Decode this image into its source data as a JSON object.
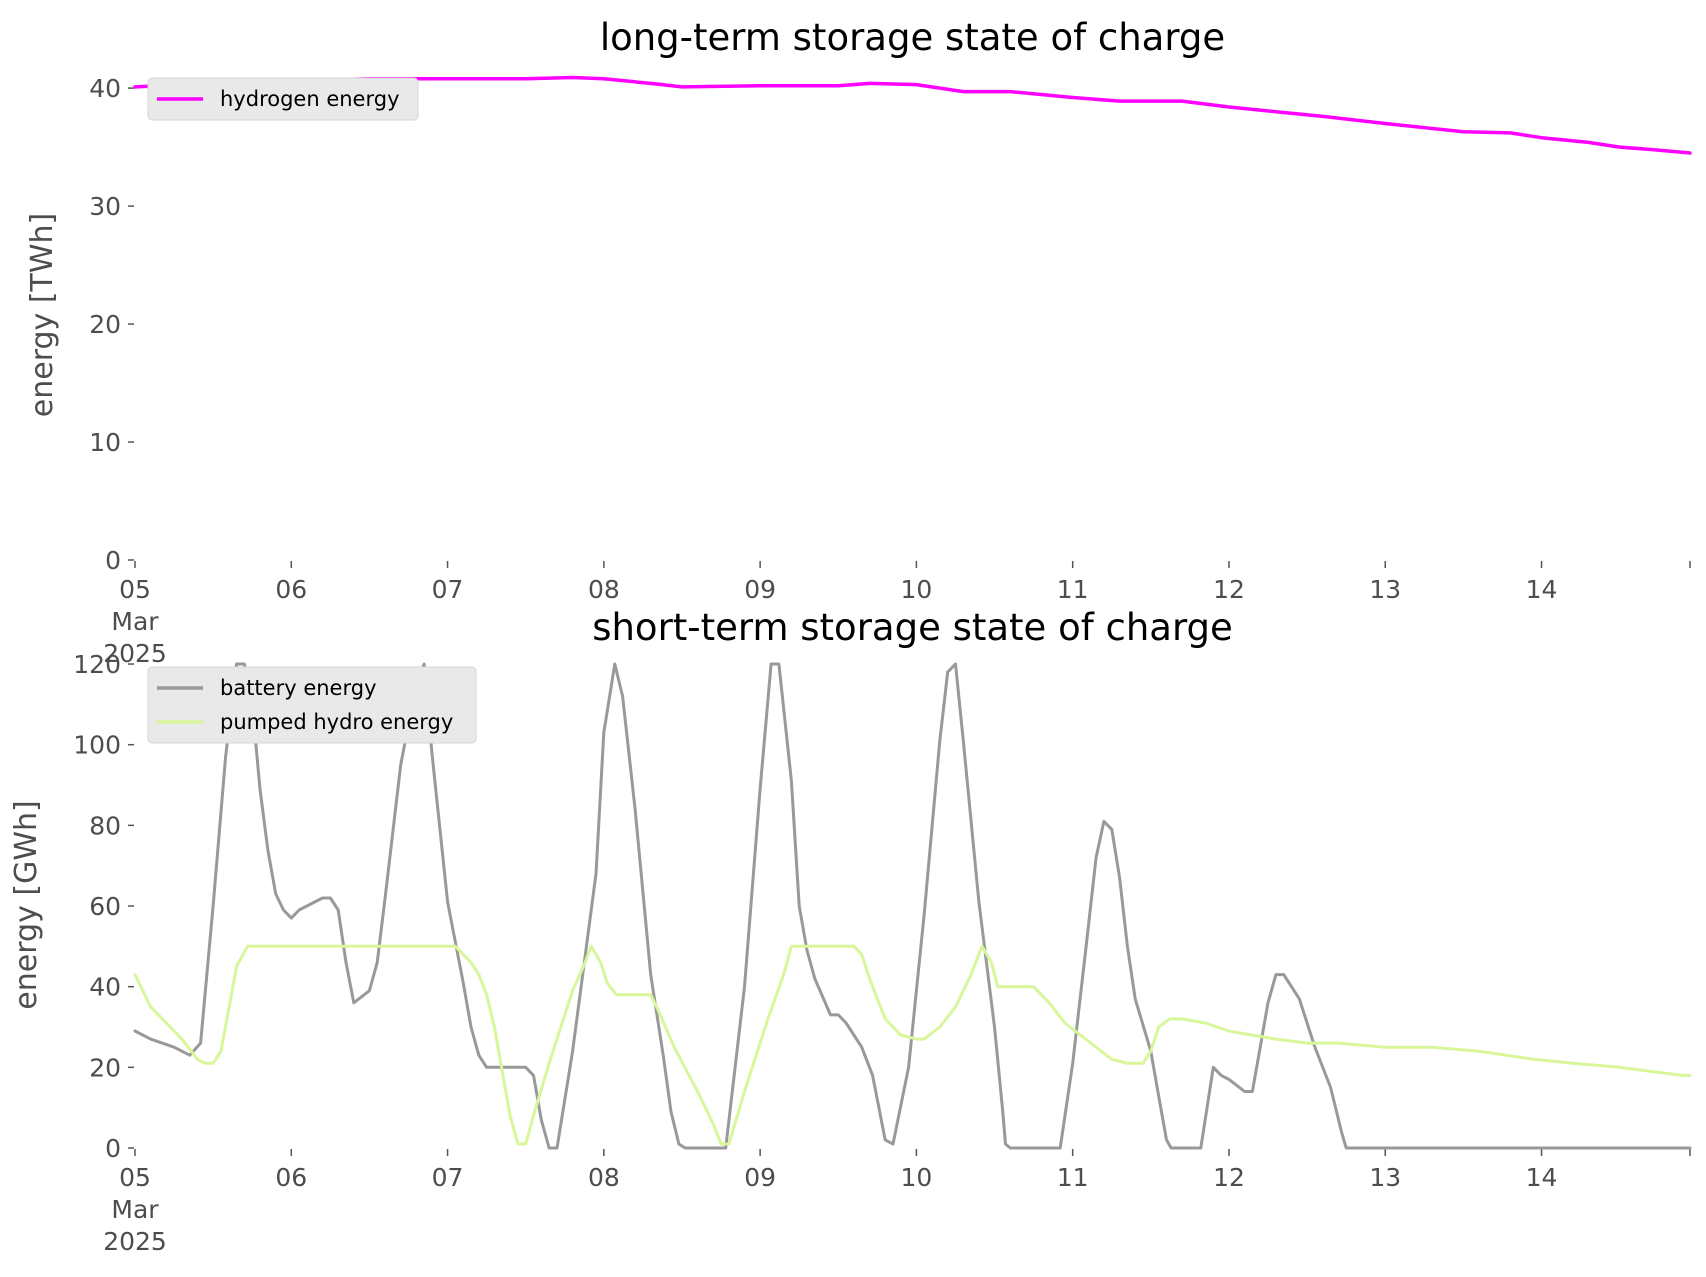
{
  "chart_data": [
    {
      "type": "line",
      "title": "long-term storage state of charge",
      "xlabel": "",
      "ylabel": "energy [TWh]",
      "ylim": [
        0,
        43.4
      ],
      "yticks": [
        0,
        10,
        20,
        30,
        40
      ],
      "xlim": [
        0,
        9.95
      ],
      "x_unit": "days since 05 Mar 2025",
      "xticks": [
        {
          "value": 0,
          "lines": [
            "05",
            "Mar",
            "2025"
          ]
        },
        {
          "value": 1,
          "lines": [
            "06"
          ]
        },
        {
          "value": 2,
          "lines": [
            "07"
          ]
        },
        {
          "value": 3,
          "lines": [
            "08"
          ]
        },
        {
          "value": 4,
          "lines": [
            "09"
          ]
        },
        {
          "value": 5,
          "lines": [
            "10"
          ]
        },
        {
          "value": 6,
          "lines": [
            "11"
          ]
        },
        {
          "value": 7,
          "lines": [
            "12"
          ]
        },
        {
          "value": 8,
          "lines": [
            "13"
          ]
        },
        {
          "value": 9,
          "lines": [
            "14"
          ]
        }
      ],
      "grid": false,
      "legend_position": "top-left",
      "series": [
        {
          "name": "hydrogen energy",
          "color": "#ff00ff",
          "points": [
            [
              0,
              40.1
            ],
            [
              0.5,
              40.4
            ],
            [
              1,
              40.6
            ],
            [
              1.5,
              40.8
            ],
            [
              2,
              40.8
            ],
            [
              2.5,
              40.8
            ],
            [
              2.8,
              40.9
            ],
            [
              3,
              40.8
            ],
            [
              3.3,
              40.4
            ],
            [
              3.5,
              40.1
            ],
            [
              4,
              40.2
            ],
            [
              4.5,
              40.2
            ],
            [
              4.7,
              40.4
            ],
            [
              5,
              40.3
            ],
            [
              5.3,
              39.7
            ],
            [
              5.6,
              39.7
            ],
            [
              6,
              39.2
            ],
            [
              6.3,
              38.9
            ],
            [
              6.7,
              38.9
            ],
            [
              7,
              38.4
            ],
            [
              7.3,
              38.0
            ],
            [
              7.6,
              37.6
            ],
            [
              8,
              37.0
            ],
            [
              8.5,
              36.3
            ],
            [
              8.8,
              36.2
            ],
            [
              9,
              35.8
            ],
            [
              9.3,
              35.4
            ],
            [
              9.5,
              35.0
            ],
            [
              9.7,
              34.8
            ],
            [
              9.95,
              34.5
            ]
          ]
        }
      ]
    },
    {
      "type": "line",
      "title": "short-term storage state of charge",
      "xlabel": "",
      "ylabel": "energy [GWh]",
      "ylim": [
        0,
        121
      ],
      "yticks": [
        0,
        20,
        40,
        60,
        80,
        100,
        120
      ],
      "xlim": [
        0,
        9.95
      ],
      "x_unit": "days since 05 Mar 2025",
      "xticks": [
        {
          "value": 0,
          "lines": [
            "05",
            "Mar",
            "2025"
          ]
        },
        {
          "value": 1,
          "lines": [
            "06"
          ]
        },
        {
          "value": 2,
          "lines": [
            "07"
          ]
        },
        {
          "value": 3,
          "lines": [
            "08"
          ]
        },
        {
          "value": 4,
          "lines": [
            "09"
          ]
        },
        {
          "value": 5,
          "lines": [
            "10"
          ]
        },
        {
          "value": 6,
          "lines": [
            "11"
          ]
        },
        {
          "value": 7,
          "lines": [
            "12"
          ]
        },
        {
          "value": 8,
          "lines": [
            "13"
          ]
        },
        {
          "value": 9,
          "lines": [
            "14"
          ]
        }
      ],
      "grid": false,
      "legend_position": "top-left",
      "series": [
        {
          "name": "battery energy",
          "color": "#999999",
          "points": [
            [
              0,
              29
            ],
            [
              0.1,
              27
            ],
            [
              0.25,
              25
            ],
            [
              0.35,
              23
            ],
            [
              0.42,
              26
            ],
            [
              0.5,
              60
            ],
            [
              0.58,
              97
            ],
            [
              0.65,
              120
            ],
            [
              0.7,
              120
            ],
            [
              0.75,
              110
            ],
            [
              0.8,
              89
            ],
            [
              0.85,
              74
            ],
            [
              0.9,
              63
            ],
            [
              0.95,
              59
            ],
            [
              1,
              57
            ],
            [
              1.05,
              59
            ],
            [
              1.1,
              60
            ],
            [
              1.15,
              61
            ],
            [
              1.2,
              62
            ],
            [
              1.25,
              62
            ],
            [
              1.3,
              59
            ],
            [
              1.35,
              46
            ],
            [
              1.4,
              36
            ],
            [
              1.5,
              39
            ],
            [
              1.55,
              46
            ],
            [
              1.6,
              62
            ],
            [
              1.7,
              95
            ],
            [
              1.8,
              115
            ],
            [
              1.85,
              120
            ],
            [
              1.9,
              98
            ],
            [
              2,
              61
            ],
            [
              2.1,
              41
            ],
            [
              2.15,
              30
            ],
            [
              2.2,
              23
            ],
            [
              2.25,
              20
            ],
            [
              2.5,
              20
            ],
            [
              2.55,
              18
            ],
            [
              2.6,
              7
            ],
            [
              2.65,
              0
            ],
            [
              2.7,
              0
            ],
            [
              2.8,
              24
            ],
            [
              2.95,
              68
            ],
            [
              3.0,
              103
            ],
            [
              3.07,
              120
            ],
            [
              3.12,
              112
            ],
            [
              3.2,
              84
            ],
            [
              3.3,
              43
            ],
            [
              3.38,
              23
            ],
            [
              3.43,
              9
            ],
            [
              3.48,
              1
            ],
            [
              3.52,
              0
            ],
            [
              3.78,
              0
            ],
            [
              3.9,
              40
            ],
            [
              4.0,
              89
            ],
            [
              4.07,
              120
            ],
            [
              4.12,
              120
            ],
            [
              4.2,
              91
            ],
            [
              4.25,
              60
            ],
            [
              4.3,
              49
            ],
            [
              4.35,
              42
            ],
            [
              4.45,
              33
            ],
            [
              4.5,
              33
            ],
            [
              4.55,
              31
            ],
            [
              4.6,
              28
            ],
            [
              4.65,
              25
            ],
            [
              4.72,
              18
            ],
            [
              4.8,
              2
            ],
            [
              4.85,
              1
            ],
            [
              4.95,
              20
            ],
            [
              5.05,
              58
            ],
            [
              5.15,
              101
            ],
            [
              5.2,
              118
            ],
            [
              5.25,
              120
            ],
            [
              5.3,
              101
            ],
            [
              5.4,
              61
            ],
            [
              5.5,
              30
            ],
            [
              5.55,
              10
            ],
            [
              5.57,
              1
            ],
            [
              5.6,
              0
            ],
            [
              5.92,
              0
            ],
            [
              6.0,
              21
            ],
            [
              6.08,
              48
            ],
            [
              6.15,
              72
            ],
            [
              6.2,
              81
            ],
            [
              6.25,
              79
            ],
            [
              6.3,
              67
            ],
            [
              6.35,
              50
            ],
            [
              6.4,
              37
            ],
            [
              6.5,
              24
            ],
            [
              6.55,
              13
            ],
            [
              6.6,
              2
            ],
            [
              6.63,
              0
            ],
            [
              6.82,
              0
            ],
            [
              6.9,
              20
            ],
            [
              6.95,
              18
            ],
            [
              7.0,
              17
            ],
            [
              7.1,
              14
            ],
            [
              7.15,
              14
            ],
            [
              7.2,
              25
            ],
            [
              7.25,
              36
            ],
            [
              7.3,
              43
            ],
            [
              7.35,
              43
            ],
            [
              7.4,
              40
            ],
            [
              7.45,
              37
            ],
            [
              7.55,
              25
            ],
            [
              7.65,
              15
            ],
            [
              7.72,
              4
            ],
            [
              7.75,
              0
            ],
            [
              9.95,
              0
            ]
          ]
        },
        {
          "name": "pumped hydro energy",
          "color": "#d8f69a",
          "points": [
            [
              0,
              43
            ],
            [
              0.1,
              35
            ],
            [
              0.2,
              31
            ],
            [
              0.3,
              27
            ],
            [
              0.4,
              22
            ],
            [
              0.45,
              21
            ],
            [
              0.5,
              21
            ],
            [
              0.55,
              24
            ],
            [
              0.65,
              45
            ],
            [
              0.72,
              50
            ],
            [
              1.0,
              50
            ],
            [
              1.5,
              50
            ],
            [
              2.0,
              50
            ],
            [
              2.05,
              50
            ],
            [
              2.15,
              46
            ],
            [
              2.2,
              43
            ],
            [
              2.25,
              38
            ],
            [
              2.3,
              30
            ],
            [
              2.35,
              19
            ],
            [
              2.4,
              8
            ],
            [
              2.45,
              1
            ],
            [
              2.5,
              1
            ],
            [
              2.55,
              8
            ],
            [
              2.65,
              21
            ],
            [
              2.8,
              39
            ],
            [
              2.88,
              46
            ],
            [
              2.92,
              50
            ],
            [
              2.98,
              46
            ],
            [
              3.02,
              41
            ],
            [
              3.08,
              38
            ],
            [
              3.3,
              38
            ],
            [
              3.35,
              34
            ],
            [
              3.45,
              25
            ],
            [
              3.6,
              14
            ],
            [
              3.7,
              6
            ],
            [
              3.75,
              1
            ],
            [
              3.8,
              1
            ],
            [
              3.9,
              14
            ],
            [
              4.05,
              32
            ],
            [
              4.15,
              43
            ],
            [
              4.2,
              50
            ],
            [
              4.6,
              50
            ],
            [
              4.65,
              48
            ],
            [
              4.7,
              42
            ],
            [
              4.8,
              32
            ],
            [
              4.9,
              28
            ],
            [
              5.0,
              27
            ],
            [
              5.05,
              27
            ],
            [
              5.15,
              30
            ],
            [
              5.25,
              35
            ],
            [
              5.35,
              43
            ],
            [
              5.42,
              50
            ],
            [
              5.48,
              46
            ],
            [
              5.52,
              40
            ],
            [
              5.75,
              40
            ],
            [
              5.85,
              36
            ],
            [
              5.95,
              31
            ],
            [
              6.05,
              28
            ],
            [
              6.15,
              25
            ],
            [
              6.25,
              22
            ],
            [
              6.35,
              21
            ],
            [
              6.45,
              21
            ],
            [
              6.5,
              24
            ],
            [
              6.55,
              30
            ],
            [
              6.62,
              32
            ],
            [
              6.7,
              32
            ],
            [
              6.85,
              31
            ],
            [
              7.0,
              29
            ],
            [
              7.15,
              28
            ],
            [
              7.3,
              27
            ],
            [
              7.5,
              26
            ],
            [
              7.7,
              26
            ],
            [
              8.0,
              25
            ],
            [
              8.3,
              25
            ],
            [
              8.6,
              24
            ],
            [
              8.95,
              22
            ],
            [
              9.2,
              21
            ],
            [
              9.5,
              20
            ],
            [
              9.7,
              19
            ],
            [
              9.9,
              18
            ],
            [
              9.95,
              18
            ]
          ]
        }
      ]
    }
  ]
}
